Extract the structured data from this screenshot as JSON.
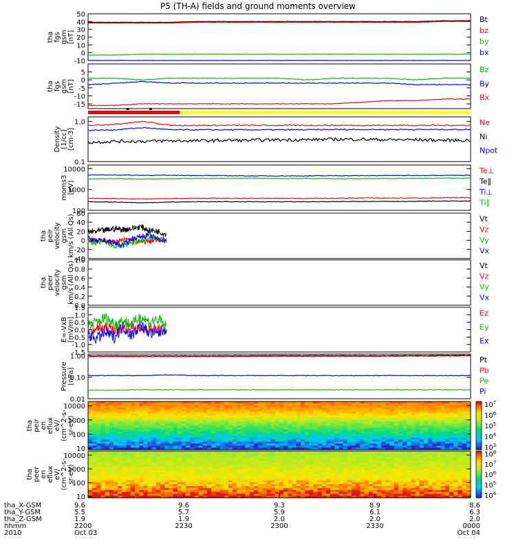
{
  "title": "P5 (TH-A) fields and ground moments overview",
  "colors": {
    "black": "#000000",
    "red": "#ff0000",
    "green": "#00c000",
    "blue": "#0000ff",
    "yellow": "#ffff00"
  },
  "chart_data": [
    {
      "type": "line",
      "ylabel": [
        "tha",
        "fgs",
        "gsm",
        "[nT]"
      ],
      "ylim": [
        -10,
        50
      ],
      "yticks": [
        "50",
        "40",
        "30",
        "20",
        "10",
        "0",
        "-10"
      ],
      "legend": [
        "Bt",
        "bz",
        "by",
        "bx"
      ],
      "series": [
        {
          "name": "Bt",
          "color": "black",
          "values": [
            39,
            39,
            39,
            39,
            40,
            40,
            40,
            40,
            40,
            40,
            40,
            40,
            40,
            41,
            41
          ]
        },
        {
          "name": "bz",
          "color": "red",
          "values": [
            38,
            38,
            38,
            38,
            39,
            39,
            39,
            39,
            39,
            39,
            39,
            39,
            39,
            40,
            40
          ]
        },
        {
          "name": "by",
          "color": "green",
          "values": [
            -3,
            -3,
            -2,
            -2,
            -2,
            -2,
            -2,
            -2,
            -2,
            -2,
            -2,
            -2,
            -2,
            -2,
            -2
          ]
        },
        {
          "name": "bx",
          "color": "blue",
          "values": [
            -10,
            -10,
            -10,
            -10,
            -10,
            -10,
            -10,
            -10,
            -10,
            -10,
            -10,
            -10,
            -10,
            -10,
            -10
          ]
        }
      ]
    },
    {
      "type": "line",
      "ylabel": [
        "tha",
        "fgs",
        "gsm",
        "[nT]"
      ],
      "ylim": [
        -18,
        10
      ],
      "yticks": [
        "5",
        "0",
        "-5",
        "-10",
        "-15"
      ],
      "legend": [
        "Bz",
        "By",
        "Bx"
      ],
      "series": [
        {
          "name": "Bz",
          "color": "green",
          "values": [
            1,
            1,
            0,
            1,
            1,
            1,
            1,
            1,
            0,
            1,
            1,
            1,
            0,
            1,
            1
          ]
        },
        {
          "name": "By",
          "color": "blue",
          "values": [
            -3,
            -2,
            -1,
            -2,
            -2,
            -2,
            -2,
            -2,
            -2,
            -2,
            -2,
            -2,
            -3,
            -3,
            -3
          ]
        },
        {
          "name": "Bx",
          "color": "red",
          "values": [
            -16,
            -16,
            -15,
            -15,
            -15,
            -15,
            -15,
            -15,
            -15,
            -15,
            -14,
            -13,
            -13,
            -12,
            -12
          ]
        }
      ]
    },
    {
      "type": "line",
      "ylabel": [
        "Density",
        "[1/cc]",
        "[cm-3]"
      ],
      "ylim": [
        0.1,
        1.3
      ],
      "yscale": "log",
      "yticks": [
        "1.0",
        "0.1"
      ],
      "legend": [
        "Ne",
        "Ni",
        "Npot"
      ],
      "series": [
        {
          "name": "Ne",
          "color": "red",
          "values": [
            0.8,
            0.85,
            1.0,
            0.8,
            0.8,
            0.8,
            0.8,
            0.8,
            0.8,
            0.8,
            0.8,
            0.8,
            0.8,
            0.8,
            0.8
          ]
        },
        {
          "name": "Ni",
          "color": "blue",
          "values": [
            0.6,
            0.62,
            0.7,
            0.62,
            0.62,
            0.62,
            0.62,
            0.62,
            0.62,
            0.63,
            0.63,
            0.63,
            0.63,
            0.63,
            0.63
          ]
        },
        {
          "name": "Npot",
          "color": "black",
          "values": [
            0.3,
            0.32,
            0.32,
            0.33,
            0.33,
            0.34,
            0.34,
            0.35,
            0.35,
            0.36,
            0.36,
            0.35,
            0.35,
            0.34,
            0.34
          ]
        }
      ]
    },
    {
      "type": "line",
      "ylabel": [
        "moms3",
        "[eV]"
      ],
      "ylim": [
        100,
        15000
      ],
      "yscale": "log",
      "yticks": [
        "10000",
        "1000",
        "100"
      ],
      "legend": [
        "Te⊥",
        "Te∥",
        "Ti⊥",
        "Ti∥"
      ],
      "series": [
        {
          "name": "Ti⊥",
          "color": "blue",
          "values": [
            5000,
            5000,
            4800,
            4800,
            4700,
            4600,
            4500,
            4500,
            4500,
            4600,
            4600,
            4700,
            4700,
            4800,
            4800
          ]
        },
        {
          "name": "Ti∥",
          "color": "green",
          "values": [
            3200,
            3300,
            3200,
            3300,
            3400,
            3400,
            3500,
            3400,
            3400,
            3300,
            3300,
            3400,
            3400,
            3500,
            3500
          ]
        },
        {
          "name": "Te⊥",
          "color": "red",
          "values": [
            380,
            370,
            350,
            370,
            380,
            380,
            380,
            380,
            380,
            380,
            390,
            390,
            390,
            400,
            400
          ]
        },
        {
          "name": "Te∥",
          "color": "black",
          "values": [
            260,
            250,
            230,
            250,
            260,
            260,
            260,
            260,
            260,
            260,
            270,
            270,
            270,
            280,
            280
          ]
        }
      ]
    },
    {
      "type": "line",
      "ylabel": [
        "tha",
        "peir",
        "velocity",
        "gsm",
        "km/s (All Qs)"
      ],
      "ylim": [
        -40,
        60
      ],
      "yticks": [
        "60",
        "40",
        "20",
        "0",
        "-20",
        "-40"
      ],
      "legend": [
        "Vt",
        "Vz",
        "Vy",
        "Vx"
      ],
      "series": [
        {
          "name": "Vt",
          "color": "black",
          "values": [
            18,
            20,
            22,
            26,
            24,
            26,
            30,
            22,
            20,
            14
          ]
        },
        {
          "name": "Vz",
          "color": "red",
          "values": [
            2,
            0,
            -2,
            -4,
            0,
            2,
            -4,
            -2,
            0,
            0
          ]
        },
        {
          "name": "Vy",
          "color": "green",
          "values": [
            -4,
            -6,
            -2,
            -14,
            -10,
            -6,
            -2,
            4,
            6,
            -2
          ]
        },
        {
          "name": "Vx",
          "color": "blue",
          "values": [
            4,
            -2,
            0,
            -6,
            -12,
            4,
            8,
            12,
            2,
            2
          ]
        }
      ]
    },
    {
      "type": "line",
      "ylabel": [
        "tha",
        "peer",
        "velocity",
        "gsm",
        "km/s (All Qs)"
      ],
      "ylim": [
        0,
        1
      ],
      "yticks": [
        "1.0",
        "0.8",
        "0.6",
        "0.4",
        "0.2",
        "0.0"
      ],
      "legend": [
        "Vt",
        "Vz",
        "Vy",
        "Vx"
      ],
      "series": []
    },
    {
      "type": "line",
      "ylabel": [
        "E=-VxB",
        "[mV/m]"
      ],
      "ylim": [
        -1.5,
        1.5
      ],
      "yticks": [
        "1.5",
        "1.0",
        "0.5",
        "0.0",
        "-0.5",
        "-1.0",
        "-1.5"
      ],
      "legend": [
        "Ez",
        "Ey",
        "Ex"
      ],
      "series": [
        {
          "name": "Ez",
          "color": "red",
          "values": [
            0,
            0.1,
            0.1,
            0,
            0.1,
            0.2,
            0,
            0.1,
            0,
            0
          ]
        },
        {
          "name": "Ey",
          "color": "green",
          "values": [
            0.3,
            0.5,
            0.8,
            0.4,
            0.6,
            0.3,
            0.9,
            0.5,
            0.7,
            0.2
          ]
        },
        {
          "name": "Ex",
          "color": "blue",
          "values": [
            -0.3,
            -0.6,
            -0.2,
            -0.5,
            0.2,
            -0.4,
            0.3,
            -0.2,
            -0.3,
            0.1
          ]
        }
      ]
    },
    {
      "type": "line",
      "ylabel": [
        "Pressure",
        "[nPa]"
      ],
      "ylim": [
        0.01,
        1.2
      ],
      "yscale": "log",
      "yticks": [
        "1.00",
        "0.10",
        "0.01"
      ],
      "legend": [
        "Pt",
        "Pb",
        "Pe",
        "Pi"
      ],
      "series": [
        {
          "name": "Pt",
          "color": "black",
          "values": [
            1.0,
            1.0,
            1.0,
            1.0,
            1.0,
            1.0,
            1.02,
            1.03,
            1.03,
            1.02,
            1.02,
            1.02,
            1.03,
            1.05,
            1.05
          ]
        },
        {
          "name": "Pb",
          "color": "red",
          "values": [
            0.9,
            0.9,
            0.9,
            0.9,
            0.92,
            0.92,
            0.93,
            0.93,
            0.94,
            0.94,
            0.94,
            0.95,
            0.96,
            0.98,
            0.98
          ]
        },
        {
          "name": "Pi",
          "color": "blue",
          "values": [
            0.12,
            0.12,
            0.12,
            0.13,
            0.12,
            0.12,
            0.12,
            0.12,
            0.12,
            0.12,
            0.12,
            0.12,
            0.12,
            0.12,
            0.12
          ]
        },
        {
          "name": "Pe",
          "color": "green",
          "values": [
            0.025,
            0.025,
            0.026,
            0.026,
            0.026,
            0.026,
            0.026,
            0.026,
            0.026,
            0.026,
            0.026,
            0.026,
            0.026,
            0.026,
            0.026
          ]
        }
      ]
    },
    {
      "type": "heatmap",
      "ylabel": [
        "tha",
        "peir",
        "en",
        "eflux",
        "eV/",
        "(cm^2-s-",
        "sr-eV)"
      ],
      "yscale": "log",
      "ylim": [
        8,
        20000
      ],
      "yticks": [
        "10000",
        "1000",
        "100",
        "10"
      ],
      "colorbar": {
        "ticks": [
          "10^7",
          "10^6",
          "10^5",
          "10^4",
          "10^3"
        ],
        "range_exp": [
          3,
          7
        ]
      },
      "energy_profile_exp": [
        6.6,
        6.4,
        6.0,
        5.3,
        4.9,
        4.3,
        3.6,
        3.2
      ]
    },
    {
      "type": "heatmap",
      "ylabel": [
        "tha",
        "peer",
        "en",
        "eflux",
        "eV/",
        "(cm^2-s-",
        "sr-eV)"
      ],
      "yscale": "log",
      "ylim": [
        8,
        20000
      ],
      "yticks": [
        "10000",
        "1000",
        "100",
        "10"
      ],
      "colorbar": {
        "ticks": [
          "10^8",
          "10^7",
          "10^6",
          "10^5",
          "10^4"
        ],
        "range_exp": [
          4,
          8
        ]
      },
      "energy_profile_exp": [
        6.4,
        6.5,
        6.6,
        6.8,
        6.9,
        7.2,
        7.6,
        8.0
      ]
    }
  ],
  "mode_bar": {
    "red_until_fraction": 0.24,
    "black_marks": [
      0.1,
      0.16
    ]
  },
  "xaxis": {
    "rows": [
      {
        "label": "tha_X-GSM",
        "values": [
          "9.6",
          "9.6",
          "9.3",
          "8.9",
          "8.6"
        ]
      },
      {
        "label": "tha_Y-GSM",
        "values": [
          "5.5",
          "5.7",
          "5.9",
          "6.1",
          "6.3"
        ]
      },
      {
        "label": "tha_Z-GSM",
        "values": [
          "1.9",
          "1.9",
          "2.0",
          "2.0",
          "2.0"
        ]
      },
      {
        "label": "hhmm",
        "values": [
          "2200",
          "2230",
          "2300",
          "2330",
          "0000"
        ]
      },
      {
        "label": "2010",
        "values": [
          "Oct 03",
          "",
          "",
          "",
          "Oct 04"
        ]
      }
    ]
  }
}
